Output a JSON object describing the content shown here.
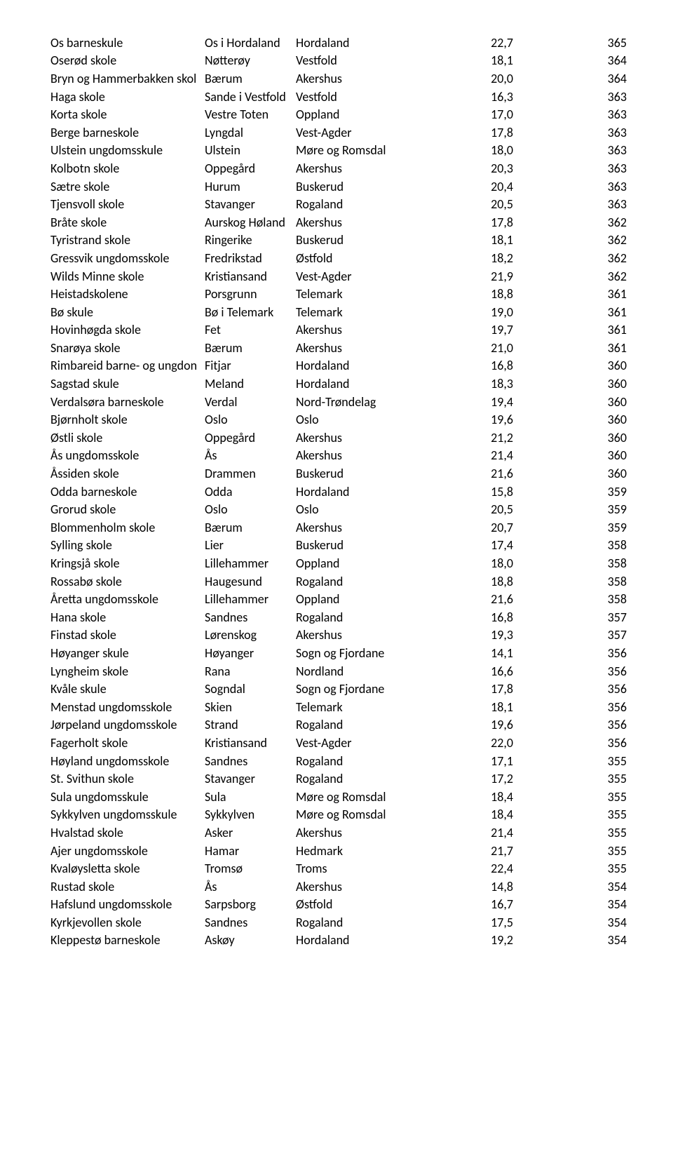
{
  "rows": [
    {
      "school": "Os barneskule",
      "muni": "Os i Hordaland",
      "fylke": "Hordaland",
      "v1": "22,7",
      "v2": "365"
    },
    {
      "school": "Oserød skole",
      "muni": "Nøtterøy",
      "fylke": "Vestfold",
      "v1": "18,1",
      "v2": "364"
    },
    {
      "school": "Bryn og Hammerbakken skol",
      "muni": "Bærum",
      "fylke": "Akershus",
      "v1": "20,0",
      "v2": "364"
    },
    {
      "school": "Haga skole",
      "muni": "Sande i Vestfold",
      "fylke": "Vestfold",
      "v1": "16,3",
      "v2": "363"
    },
    {
      "school": "Korta skole",
      "muni": "Vestre Toten",
      "fylke": "Oppland",
      "v1": "17,0",
      "v2": "363"
    },
    {
      "school": "Berge barneskole",
      "muni": "Lyngdal",
      "fylke": "Vest-Agder",
      "v1": "17,8",
      "v2": "363"
    },
    {
      "school": "Ulstein ungdomsskule",
      "muni": "Ulstein",
      "fylke": "Møre og Romsdal",
      "v1": "18,0",
      "v2": "363"
    },
    {
      "school": "Kolbotn skole",
      "muni": "Oppegård",
      "fylke": "Akershus",
      "v1": "20,3",
      "v2": "363"
    },
    {
      "school": "Sætre skole",
      "muni": "Hurum",
      "fylke": "Buskerud",
      "v1": "20,4",
      "v2": "363"
    },
    {
      "school": "Tjensvoll skole",
      "muni": "Stavanger",
      "fylke": "Rogaland",
      "v1": "20,5",
      "v2": "363"
    },
    {
      "school": "Bråte skole",
      "muni": "Aurskog Høland",
      "fylke": "Akershus",
      "v1": "17,8",
      "v2": "362"
    },
    {
      "school": "Tyristrand skole",
      "muni": "Ringerike",
      "fylke": "Buskerud",
      "v1": "18,1",
      "v2": "362"
    },
    {
      "school": "Gressvik ungdomsskole",
      "muni": "Fredrikstad",
      "fylke": "Østfold",
      "v1": "18,2",
      "v2": "362"
    },
    {
      "school": "Wilds Minne skole",
      "muni": "Kristiansand",
      "fylke": "Vest-Agder",
      "v1": "21,9",
      "v2": "362"
    },
    {
      "school": "Heistadskolene",
      "muni": "Porsgrunn",
      "fylke": "Telemark",
      "v1": "18,8",
      "v2": "361"
    },
    {
      "school": "Bø skule",
      "muni": "Bø i Telemark",
      "fylke": "Telemark",
      "v1": "19,0",
      "v2": "361"
    },
    {
      "school": "Hovinhøgda skole",
      "muni": "Fet",
      "fylke": "Akershus",
      "v1": "19,7",
      "v2": "361"
    },
    {
      "school": "Snarøya skole",
      "muni": "Bærum",
      "fylke": "Akershus",
      "v1": "21,0",
      "v2": "361"
    },
    {
      "school": "Rimbareid barne- og ungdon",
      "muni": "Fitjar",
      "fylke": "Hordaland",
      "v1": "16,8",
      "v2": "360"
    },
    {
      "school": "Sagstad skule",
      "muni": "Meland",
      "fylke": "Hordaland",
      "v1": "18,3",
      "v2": "360"
    },
    {
      "school": "Verdalsøra barneskole",
      "muni": "Verdal",
      "fylke": "Nord-Trøndelag",
      "v1": "19,4",
      "v2": "360"
    },
    {
      "school": "Bjørnholt skole",
      "muni": "Oslo",
      "fylke": "Oslo",
      "v1": "19,6",
      "v2": "360"
    },
    {
      "school": "Østli skole",
      "muni": "Oppegård",
      "fylke": "Akershus",
      "v1": "21,2",
      "v2": "360"
    },
    {
      "school": "Ås ungdomsskole",
      "muni": "Ås",
      "fylke": "Akershus",
      "v1": "21,4",
      "v2": "360"
    },
    {
      "school": "Åssiden skole",
      "muni": "Drammen",
      "fylke": "Buskerud",
      "v1": "21,6",
      "v2": "360"
    },
    {
      "school": "Odda barneskole",
      "muni": "Odda",
      "fylke": "Hordaland",
      "v1": "15,8",
      "v2": "359"
    },
    {
      "school": "Grorud skole",
      "muni": "Oslo",
      "fylke": "Oslo",
      "v1": "20,5",
      "v2": "359"
    },
    {
      "school": "Blommenholm skole",
      "muni": "Bærum",
      "fylke": "Akershus",
      "v1": "20,7",
      "v2": "359"
    },
    {
      "school": "Sylling skole",
      "muni": "Lier",
      "fylke": "Buskerud",
      "v1": "17,4",
      "v2": "358"
    },
    {
      "school": "Kringsjå skole",
      "muni": "Lillehammer",
      "fylke": "Oppland",
      "v1": "18,0",
      "v2": "358"
    },
    {
      "school": "Rossabø skole",
      "muni": "Haugesund",
      "fylke": "Rogaland",
      "v1": "18,8",
      "v2": "358"
    },
    {
      "school": "Åretta ungdomsskole",
      "muni": "Lillehammer",
      "fylke": "Oppland",
      "v1": "21,6",
      "v2": "358"
    },
    {
      "school": "Hana skole",
      "muni": "Sandnes",
      "fylke": "Rogaland",
      "v1": "16,8",
      "v2": "357"
    },
    {
      "school": "Finstad skole",
      "muni": "Lørenskog",
      "fylke": "Akershus",
      "v1": "19,3",
      "v2": "357"
    },
    {
      "school": "Høyanger skule",
      "muni": "Høyanger",
      "fylke": "Sogn og Fjordane",
      "v1": "14,1",
      "v2": "356"
    },
    {
      "school": "Lyngheim skole",
      "muni": "Rana",
      "fylke": "Nordland",
      "v1": "16,6",
      "v2": "356"
    },
    {
      "school": "Kvåle skule",
      "muni": "Sogndal",
      "fylke": "Sogn og Fjordane",
      "v1": "17,8",
      "v2": "356"
    },
    {
      "school": "Menstad ungdomsskole",
      "muni": "Skien",
      "fylke": "Telemark",
      "v1": "18,1",
      "v2": "356"
    },
    {
      "school": "Jørpeland ungdomsskole",
      "muni": "Strand",
      "fylke": "Rogaland",
      "v1": "19,6",
      "v2": "356"
    },
    {
      "school": "Fagerholt skole",
      "muni": "Kristiansand",
      "fylke": "Vest-Agder",
      "v1": "22,0",
      "v2": "356"
    },
    {
      "school": "Høyland ungdomsskole",
      "muni": "Sandnes",
      "fylke": "Rogaland",
      "v1": "17,1",
      "v2": "355"
    },
    {
      "school": "St. Svithun skole",
      "muni": "Stavanger",
      "fylke": "Rogaland",
      "v1": "17,2",
      "v2": "355"
    },
    {
      "school": "Sula ungdomsskule",
      "muni": "Sula",
      "fylke": "Møre og Romsdal",
      "v1": "18,4",
      "v2": "355"
    },
    {
      "school": "Sykkylven ungdomsskule",
      "muni": "Sykkylven",
      "fylke": "Møre og Romsdal",
      "v1": "18,4",
      "v2": "355"
    },
    {
      "school": "Hvalstad skole",
      "muni": "Asker",
      "fylke": "Akershus",
      "v1": "21,4",
      "v2": "355"
    },
    {
      "school": "Ajer ungdomsskole",
      "muni": "Hamar",
      "fylke": "Hedmark",
      "v1": "21,7",
      "v2": "355"
    },
    {
      "school": "Kvaløysletta skole",
      "muni": "Tromsø",
      "fylke": "Troms",
      "v1": "22,4",
      "v2": "355"
    },
    {
      "school": "Rustad skole",
      "muni": "Ås",
      "fylke": "Akershus",
      "v1": "14,8",
      "v2": "354"
    },
    {
      "school": "Hafslund ungdomsskole",
      "muni": "Sarpsborg",
      "fylke": "Østfold",
      "v1": "16,7",
      "v2": "354"
    },
    {
      "school": "Kyrkjevollen skole",
      "muni": "Sandnes",
      "fylke": "Rogaland",
      "v1": "17,5",
      "v2": "354"
    },
    {
      "school": "Kleppestø barneskole",
      "muni": "Askøy",
      "fylke": "Hordaland",
      "v1": "19,2",
      "v2": "354"
    }
  ]
}
